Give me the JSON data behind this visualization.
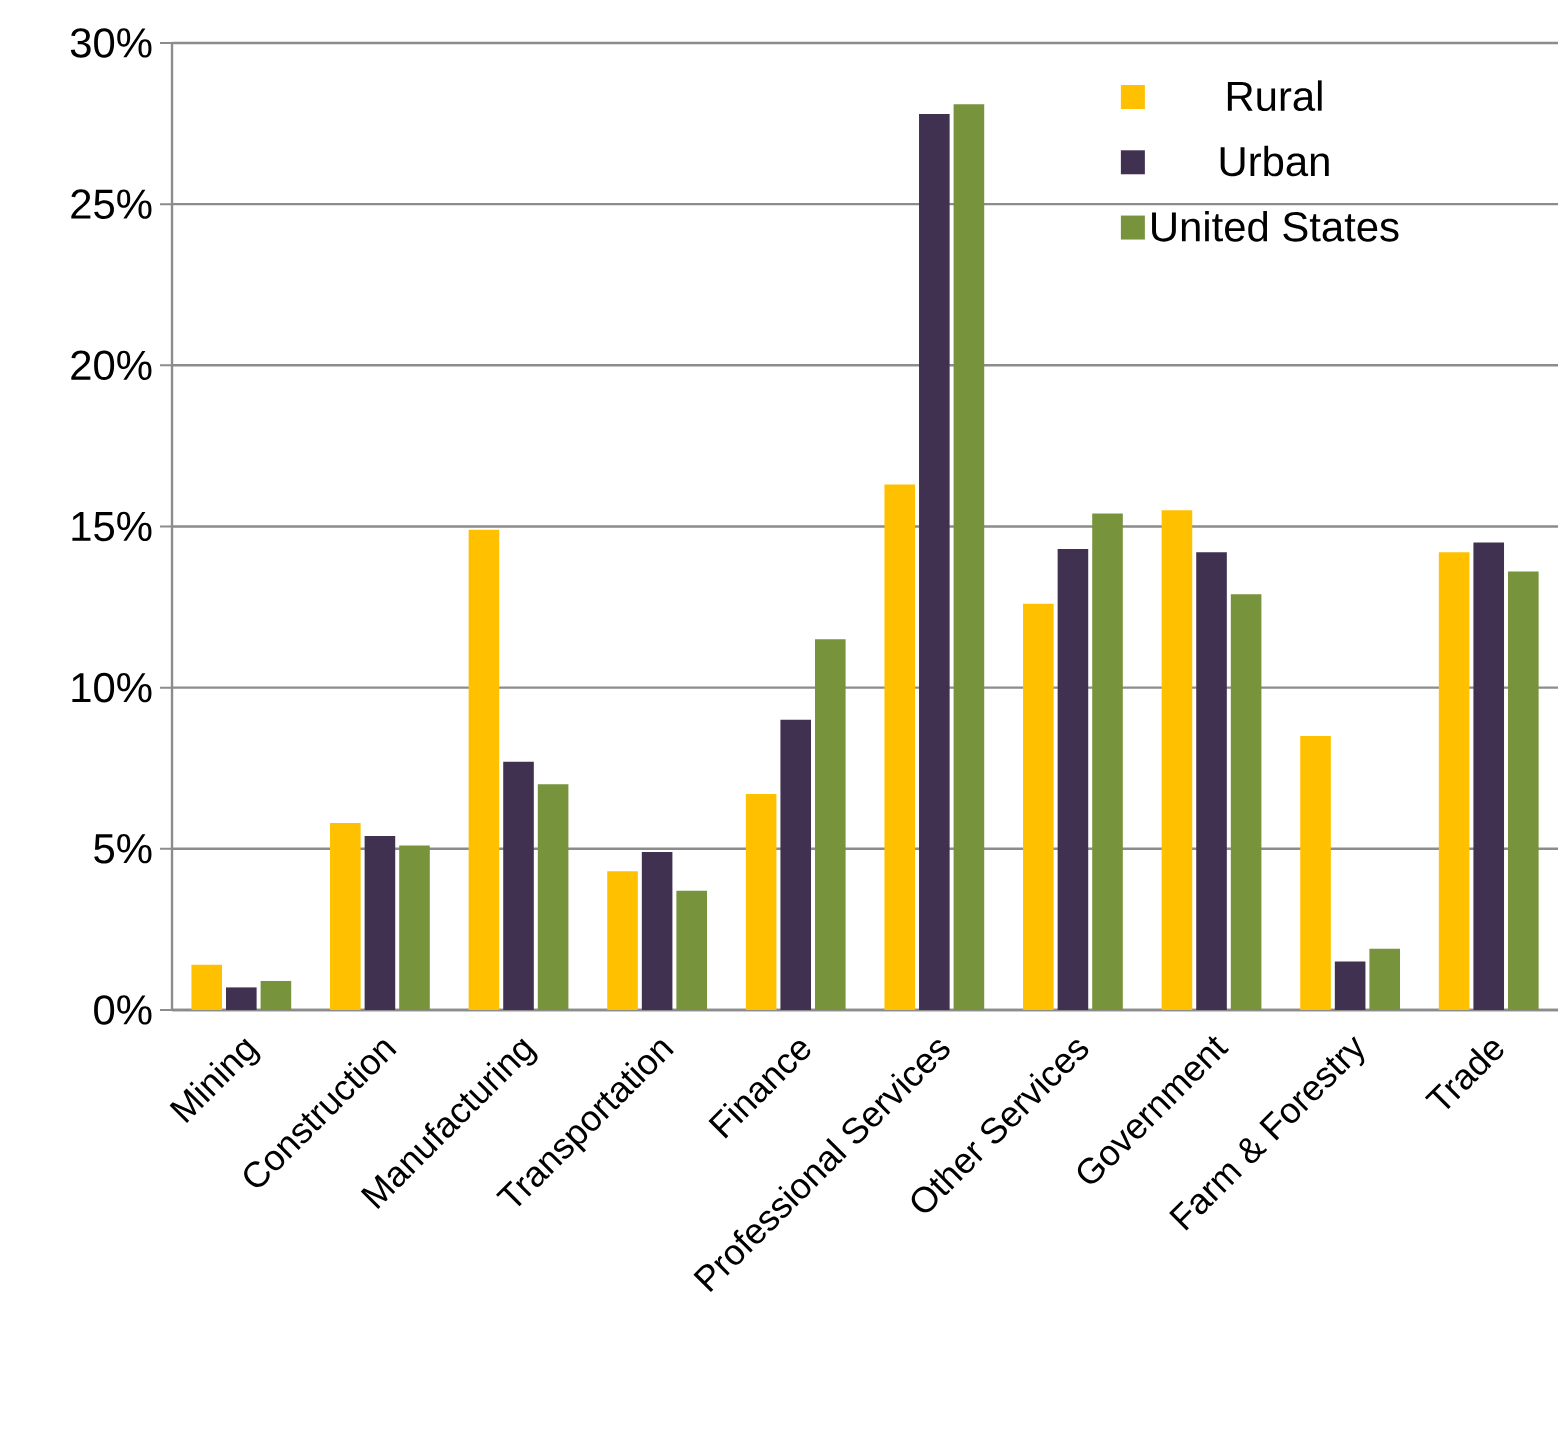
{
  "chart_data": {
    "type": "bar",
    "categories": [
      "Mining",
      "Construction",
      "Manufacturing",
      "Transportation",
      "Finance",
      "Professional Services",
      "Other Services",
      "Government",
      "Farm & Forestry",
      "Trade"
    ],
    "series": [
      {
        "name": "Rural",
        "color": "#ffc000",
        "values": [
          1.4,
          5.8,
          14.9,
          4.3,
          6.7,
          16.3,
          12.6,
          15.5,
          8.5,
          14.2
        ]
      },
      {
        "name": "Urban",
        "color": "#403151",
        "values": [
          0.7,
          5.4,
          7.7,
          4.9,
          9.0,
          27.8,
          14.3,
          14.2,
          1.5,
          14.5
        ]
      },
      {
        "name": "United States",
        "color": "#77933c",
        "values": [
          0.9,
          5.1,
          7.0,
          3.7,
          11.5,
          28.1,
          15.4,
          12.9,
          1.9,
          13.6
        ]
      }
    ],
    "ylim": [
      0,
      30
    ],
    "yticks": [
      {
        "value": 0,
        "label": "0%"
      },
      {
        "value": 5,
        "label": "5%"
      },
      {
        "value": 10,
        "label": "10%"
      },
      {
        "value": 15,
        "label": "15%"
      },
      {
        "value": 20,
        "label": "20%"
      },
      {
        "value": 25,
        "label": "25%"
      },
      {
        "value": 30,
        "label": "30%"
      }
    ],
    "grid": "y",
    "legend": "top right"
  }
}
